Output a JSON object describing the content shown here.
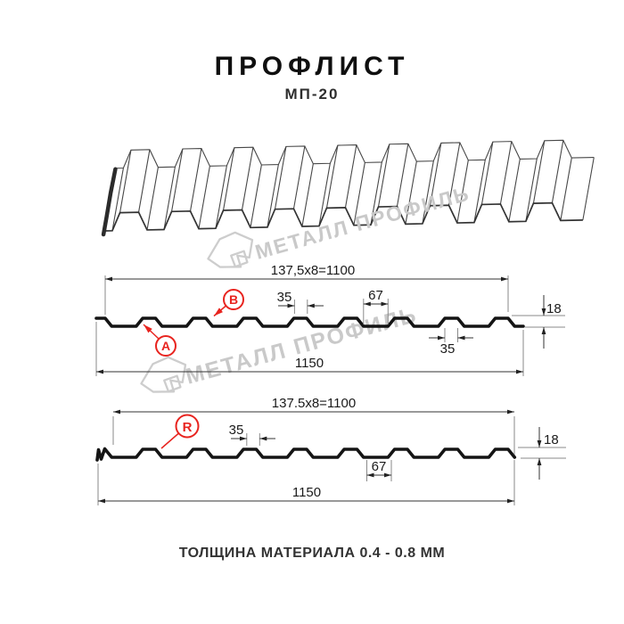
{
  "header": {
    "title": "ПРОФЛИСТ",
    "subtitle": "МП-20"
  },
  "footer": {
    "note": "ТОЛЩИНА МАТЕРИАЛА 0.4 - 0.8 ММ"
  },
  "drawing": {
    "watermark_text": "МЕТАЛЛ ПРОФИЛЬ",
    "profile_top": {
      "module_width_label": "137,5x8=1100",
      "overall_width_label": "1150",
      "rib_top_width_label": "35",
      "rib_valley_width_label": "67",
      "rib_bottom_width_label": "35",
      "height_label": "18",
      "label_a": "A",
      "label_b": "B"
    },
    "profile_bottom": {
      "module_width_label": "137.5x8=1100",
      "overall_width_label": "1150",
      "rib_top_width_label": "35",
      "rib_valley_width_label": "67",
      "height_label": "18",
      "label_r": "R"
    }
  },
  "colors": {
    "accent_red": "#e8241f",
    "line_dark": "#141414",
    "watermark_gray": "#c9c9c9"
  }
}
